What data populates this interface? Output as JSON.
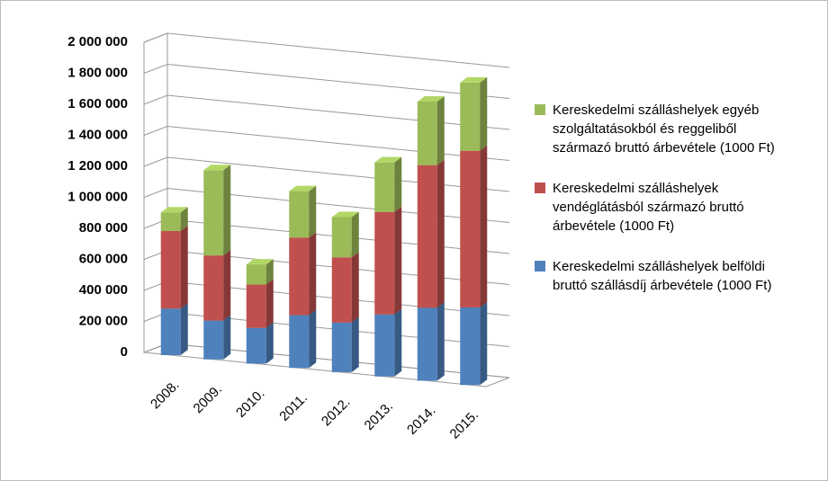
{
  "chart_data": {
    "type": "bar3d_stacked",
    "categories": [
      "2008.",
      "2009.",
      "2010.",
      "2011.",
      "2012.",
      "2013.",
      "2014.",
      "2015."
    ],
    "series": [
      {
        "name": "Kereskedelmi szálláshelyek belföldi bruttó szállásdíj árbevétele (1000 Ft)",
        "color": "#4f81bd",
        "values": [
          300000,
          250000,
          230000,
          340000,
          320000,
          400000,
          470000,
          500000
        ]
      },
      {
        "name": "Kereskedelmi szálláshelyek vendéglátásból származó bruttó árbevétele (1000 Ft)",
        "color": "#c0504d",
        "values": [
          500000,
          420000,
          280000,
          500000,
          420000,
          660000,
          920000,
          1010000
        ]
      },
      {
        "name": "Kereskedelmi szálláshelyek egyéb szolgáltatásokból és reggeliből származó bruttó árbevétele (1000 Ft)",
        "color": "#9bbb59",
        "values": [
          120000,
          550000,
          130000,
          300000,
          260000,
          320000,
          410000,
          440000
        ]
      }
    ],
    "ylim": [
      0,
      2000000
    ],
    "yticks": [
      0,
      {
        "value": 200000,
        "label": "200 000"
      },
      {
        "value": 400000,
        "label": "400 000"
      },
      {
        "value": 600000,
        "label": "600 000"
      },
      {
        "value": 800000,
        "label": "800 000"
      },
      {
        "value": 1000000,
        "label": "1 000 000"
      },
      {
        "value": 1200000,
        "label": "1 200 000"
      },
      {
        "value": 1400000,
        "label": "1 400 000"
      },
      {
        "value": 1600000,
        "label": "1 600 000"
      },
      {
        "value": 1800000,
        "label": "1 800 000"
      },
      {
        "value": 2000000,
        "label": "2 000 000"
      }
    ],
    "grid": true,
    "legend": "right"
  }
}
